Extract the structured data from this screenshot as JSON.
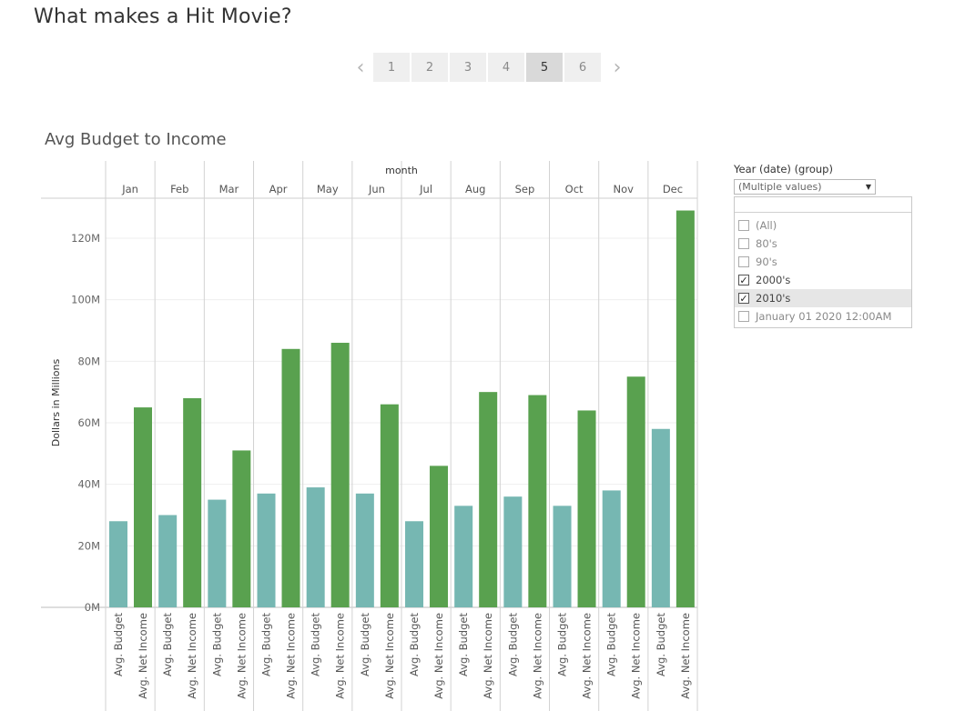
{
  "story": {
    "title": "What makes a Hit Movie?",
    "pages": [
      "1",
      "2",
      "3",
      "4",
      "5",
      "6"
    ],
    "active_page": "5",
    "prev_icon": "chevron-left-icon",
    "next_icon": "chevron-right-icon"
  },
  "chart_data": {
    "type": "bar",
    "title": "Avg Budget to Income",
    "column_header": "month",
    "categories": [
      "Jan",
      "Feb",
      "Mar",
      "Apr",
      "May",
      "Jun",
      "Jul",
      "Aug",
      "Sep",
      "Oct",
      "Nov",
      "Dec"
    ],
    "series": [
      {
        "name": "Avg. Budget",
        "color": "#76b7b2",
        "values": [
          28,
          30,
          35,
          37,
          39,
          37,
          28,
          33,
          36,
          33,
          38,
          58
        ]
      },
      {
        "name": "Avg. Net Income",
        "color": "#59a14f",
        "values": [
          65,
          68,
          51,
          84,
          86,
          66,
          46,
          70,
          69,
          64,
          75,
          129
        ]
      }
    ],
    "ylabel": "Dollars in Millions",
    "yticks": [
      "0M",
      "20M",
      "40M",
      "60M",
      "80M",
      "100M",
      "120M"
    ],
    "ytick_values": [
      0,
      20,
      40,
      60,
      80,
      100,
      120
    ],
    "ylim": [
      0,
      133
    ],
    "grid": true
  },
  "filter": {
    "title": "Year (date) (group)",
    "dropdown_value": "(Multiple values)",
    "items": [
      {
        "label": "(All)",
        "checked": false
      },
      {
        "label": "80's",
        "checked": false
      },
      {
        "label": "90's",
        "checked": false
      },
      {
        "label": "2000's",
        "checked": true
      },
      {
        "label": "2010's",
        "checked": true
      },
      {
        "label": "January 01 2020 12:00AM",
        "checked": false
      }
    ]
  }
}
